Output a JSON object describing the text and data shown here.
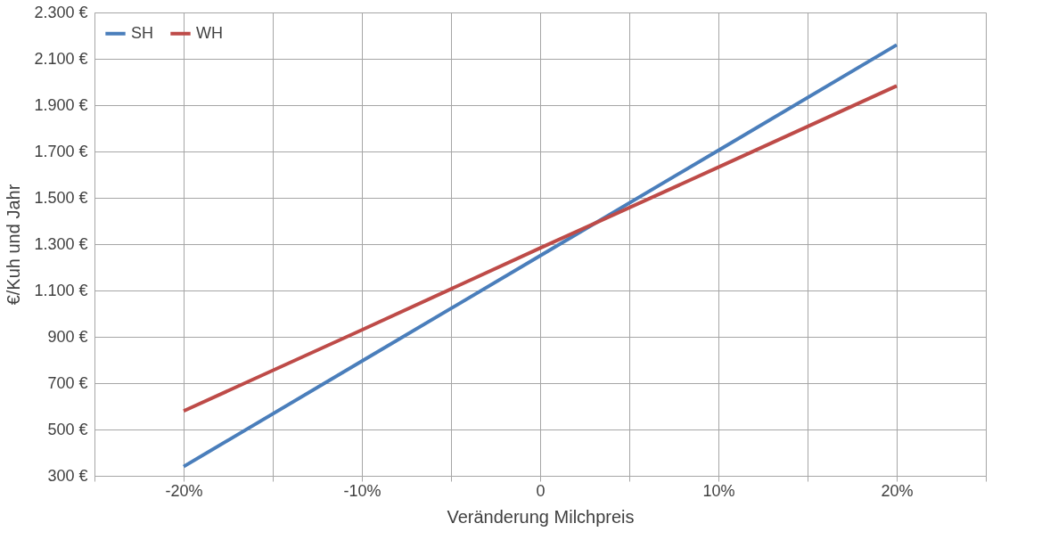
{
  "chart_data": {
    "type": "line",
    "xlabel": "Veränderung Milchpreis",
    "ylabel": "€/Kuh und Jahr",
    "x": [
      -20,
      -10,
      0,
      10,
      20
    ],
    "series": [
      {
        "name": "SH",
        "color": "#4a7ebb",
        "values": [
          340,
          795,
          1250,
          1705,
          2160
        ]
      },
      {
        "name": "WH",
        "color": "#be4b48",
        "values": [
          580,
          930,
          1283,
          1632,
          1983
        ]
      }
    ],
    "xlim": [
      -25,
      25
    ],
    "xticks": [
      {
        "value": -25,
        "label": null
      },
      {
        "value": -20,
        "label": "-20%"
      },
      {
        "value": -15,
        "label": null
      },
      {
        "value": -10,
        "label": "-10%"
      },
      {
        "value": -5,
        "label": null
      },
      0,
      {
        "value": 5,
        "label": null
      },
      {
        "value": 10,
        "label": "10%"
      },
      {
        "value": 15,
        "label": null
      },
      {
        "value": 20,
        "label": "20%"
      },
      {
        "value": 25,
        "label": null
      }
    ],
    "ylim": [
      300,
      2300
    ],
    "yticks": [
      {
        "value": 300,
        "label": "300 €"
      },
      {
        "value": 500,
        "label": "500 €"
      },
      {
        "value": 700,
        "label": "700 €"
      },
      {
        "value": 900,
        "label": "900 €"
      },
      {
        "value": 1100,
        "label": "1.100 €"
      },
      {
        "value": 1300,
        "label": "1.300 €"
      },
      {
        "value": 1500,
        "label": "1.500 €"
      },
      {
        "value": 1700,
        "label": "1.700 €"
      },
      {
        "value": 1900,
        "label": "1.900 €"
      },
      {
        "value": 2100,
        "label": "2.100 €"
      },
      {
        "value": 2300,
        "label": "2.300 €"
      }
    ],
    "grid": true,
    "legend": "top left",
    "marker": "none",
    "line_style": "solid"
  }
}
